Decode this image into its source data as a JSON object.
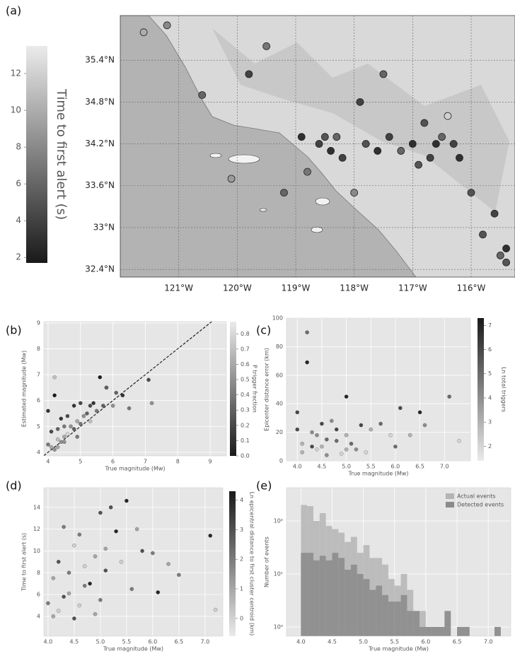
{
  "chart_data": [
    {
      "type": "map",
      "panel_label": "(a)",
      "x": [
        -121.6,
        -121.2,
        -120.6,
        -119.8,
        -119.2,
        -118.9,
        -118.6,
        -118.5,
        -118.4,
        -118.3,
        -118.2,
        -118.0,
        -117.8,
        -117.6,
        -117.4,
        -117.2,
        -117.0,
        -116.8,
        -116.7,
        -116.6,
        -116.5,
        -116.4,
        -116.3,
        -116.2,
        -116.0,
        -115.8,
        -115.6,
        -115.5,
        -115.4,
        -115.4,
        -119.5,
        -120.1,
        -117.9,
        -117.5,
        -116.9,
        -118.8
      ],
      "values": [
        35.8,
        35.9,
        34.9,
        35.2,
        33.5,
        34.3,
        34.2,
        34.3,
        34.1,
        34.3,
        34.0,
        33.5,
        34.2,
        34.1,
        34.3,
        34.1,
        34.2,
        34.5,
        34.0,
        34.2,
        34.3,
        34.6,
        34.2,
        34.0,
        33.5,
        32.9,
        33.2,
        32.6,
        32.5,
        32.7,
        35.6,
        33.7,
        34.8,
        35.2,
        33.9,
        33.8
      ],
      "color_values": [
        10,
        8,
        6,
        4,
        6,
        3,
        4,
        5,
        3,
        6,
        4,
        8,
        5,
        3,
        4,
        6,
        3,
        5,
        4,
        3,
        6,
        12,
        4,
        3,
        5,
        5,
        4,
        6,
        5,
        3,
        7,
        9,
        4,
        6,
        5,
        7
      ],
      "xlim": [
        -122.0,
        -115.25
      ],
      "ylim": [
        32.29,
        36.04
      ],
      "xticks": [
        {
          "value": -121,
          "label": "121°W"
        },
        {
          "value": -120,
          "label": "120°W"
        },
        {
          "value": -119,
          "label": "119°W"
        },
        {
          "value": -118,
          "label": "118°W"
        },
        {
          "value": -117,
          "label": "117°W"
        },
        {
          "value": -116,
          "label": "116°W"
        }
      ],
      "yticks": [
        {
          "value": 32.4,
          "label": "32.4°N"
        },
        {
          "value": 33,
          "label": "33°N"
        },
        {
          "value": 33.6,
          "label": "33.6°N"
        },
        {
          "value": 34.2,
          "label": "34.2°N"
        },
        {
          "value": 34.8,
          "label": "34.8°N"
        },
        {
          "value": 35.4,
          "label": "35.4°N"
        }
      ],
      "grid": true,
      "colorbar": {
        "label": "Time to first alert (s)",
        "lim": [
          1.7,
          13.5
        ],
        "ticks": [
          2,
          4,
          6,
          8,
          10,
          12
        ],
        "reverse": false
      }
    },
    {
      "type": "scatter",
      "panel_label": "(b)",
      "x_label": "True magnitude (Mw)",
      "y_label": "Estimated magnitude (Mw)",
      "x": [
        4.0,
        4.1,
        4.1,
        4.2,
        4.2,
        4.3,
        4.3,
        4.4,
        4.4,
        4.5,
        4.5,
        4.6,
        4.6,
        4.7,
        4.8,
        4.8,
        4.9,
        5.0,
        5.0,
        5.1,
        5.2,
        5.3,
        5.4,
        5.5,
        5.6,
        5.7,
        5.8,
        6.0,
        6.1,
        6.3,
        6.5,
        7.1,
        7.2,
        4.2,
        4.0,
        4.3,
        4.5,
        4.9,
        5.3,
        5.8
      ],
      "values": [
        4.3,
        4.2,
        4.8,
        4.1,
        6.2,
        4.5,
        4.9,
        4.4,
        5.3,
        4.6,
        5.0,
        4.7,
        5.4,
        5.0,
        4.9,
        5.8,
        5.2,
        5.1,
        5.9,
        5.4,
        5.5,
        5.2,
        5.9,
        5.6,
        6.9,
        5.8,
        6.5,
        5.8,
        6.3,
        6.2,
        5.7,
        6.8,
        5.9,
        6.9,
        5.6,
        4.2,
        4.4,
        4.6,
        5.8,
        6.5
      ],
      "color_values": [
        0.4,
        0.6,
        0.2,
        0.5,
        0.0,
        0.7,
        0.3,
        0.5,
        0.1,
        0.6,
        0.4,
        0.8,
        0.2,
        0.5,
        0.3,
        0.1,
        0.6,
        0.4,
        0.2,
        0.5,
        0.3,
        0.7,
        0.1,
        0.4,
        0.0,
        0.3,
        0.2,
        0.5,
        0.3,
        0.1,
        0.4,
        0.2,
        0.5,
        0.7,
        0.1,
        0.6,
        0.5,
        0.4,
        0.2,
        0.3
      ],
      "xlim": [
        3.87,
        9.5
      ],
      "ylim": [
        3.86,
        9.05
      ],
      "xticks": [
        4,
        5,
        6,
        7,
        8,
        9
      ],
      "yticks": [
        4,
        5,
        6,
        7,
        8,
        9
      ],
      "grid": true,
      "identity_line": true,
      "colorbar": {
        "label": "P trigger fraction",
        "lim": [
          0,
          0.88
        ],
        "ticks": [
          {
            "value": 0,
            "label": "0.0"
          },
          0.1,
          0.2,
          0.3,
          0.4,
          0.5,
          0.6,
          0.7,
          0.8
        ],
        "reverse": false
      }
    },
    {
      "type": "scatter",
      "panel_label": "(c)",
      "x_label": "True magnitude (Mw)",
      "y_label": "Epicenter distance error (km)",
      "x": [
        4.0,
        4.1,
        4.2,
        4.2,
        4.3,
        4.4,
        4.5,
        4.5,
        4.6,
        4.7,
        4.8,
        4.9,
        5.0,
        5.0,
        5.1,
        5.2,
        5.3,
        5.5,
        5.7,
        5.9,
        6.1,
        6.3,
        6.5,
        6.6,
        7.1,
        7.3,
        4.1,
        4.3,
        4.6,
        4.8,
        5.0,
        4.0,
        4.4,
        5.4,
        6.0
      ],
      "values": [
        34,
        12,
        69,
        90,
        20,
        8,
        26,
        10,
        15,
        28,
        22,
        5,
        45,
        18,
        12,
        8,
        25,
        22,
        26,
        18,
        37,
        18,
        34,
        25,
        45,
        14,
        6,
        10,
        4,
        14,
        8,
        22,
        18,
        6,
        10
      ],
      "color_values": [
        6,
        3,
        7,
        5,
        4,
        2,
        6,
        3,
        5,
        4,
        6,
        2,
        7,
        3,
        5,
        4,
        6,
        3,
        5,
        2,
        6,
        3,
        7,
        4,
        5,
        2,
        3,
        6,
        4,
        5,
        3,
        6,
        4,
        2,
        5
      ],
      "xlim": [
        3.78,
        7.53
      ],
      "ylim": [
        0,
        100
      ],
      "xticks": [
        {
          "value": 4,
          "label": "4.0"
        },
        4.5,
        {
          "value": 5,
          "label": "5.0"
        },
        5.5,
        {
          "value": 6,
          "label": "6.0"
        },
        6.5,
        {
          "value": 7,
          "label": "7.0"
        }
      ],
      "yticks": [
        0,
        20,
        40,
        60,
        80,
        100
      ],
      "grid": true,
      "colorbar": {
        "label": "Ln total triggers",
        "lim": [
          1.4,
          7.3
        ],
        "ticks": [
          2,
          3,
          4,
          5,
          6,
          7
        ],
        "reverse": true
      }
    },
    {
      "type": "scatter",
      "panel_label": "(d)",
      "x_label": "True magnitude (Mw)",
      "y_label": "Time to first alert (s)",
      "x": [
        4.0,
        4.1,
        4.2,
        4.2,
        4.3,
        4.4,
        4.5,
        4.6,
        4.7,
        4.8,
        4.9,
        5.0,
        5.0,
        5.1,
        5.2,
        5.3,
        5.4,
        5.5,
        5.6,
        5.7,
        5.8,
        6.0,
        6.1,
        6.3,
        6.5,
        7.1,
        7.2,
        4.1,
        4.3,
        4.5,
        4.7,
        4.9,
        5.1,
        4.4,
        4.6
      ],
      "values": [
        5.2,
        7.5,
        9.0,
        4.5,
        12.2,
        6.1,
        3.8,
        11.5,
        8.6,
        7.0,
        9.5,
        13.5,
        5.5,
        10.2,
        14.0,
        11.8,
        9.0,
        14.6,
        6.5,
        12.0,
        10.0,
        9.8,
        6.2,
        8.8,
        7.8,
        11.4,
        4.6,
        4.0,
        5.8,
        10.5,
        6.8,
        4.2,
        8.2,
        8.0,
        5.0
      ],
      "color_values": [
        2,
        1,
        3,
        0,
        2,
        1,
        3,
        2,
        0,
        4,
        1,
        3,
        2,
        1,
        3,
        4,
        0,
        4,
        2,
        1,
        3,
        2,
        4,
        1,
        2,
        4,
        0,
        1,
        3,
        0,
        2,
        1,
        3,
        2,
        0
      ],
      "xlim": [
        3.92,
        7.34
      ],
      "ylim": [
        2.18,
        15.8
      ],
      "xticks": [
        {
          "value": 4,
          "label": "4.0"
        },
        4.5,
        {
          "value": 5,
          "label": "5.0"
        },
        5.5,
        {
          "value": 6,
          "label": "6.0"
        },
        6.5,
        {
          "value": 7,
          "label": "7.0"
        }
      ],
      "yticks": [
        4,
        6,
        8,
        10,
        12,
        14
      ],
      "grid": true,
      "colorbar": {
        "label": "Ln epicentral distance to first cluster centroid (km)",
        "lim": [
          -0.6,
          4.3
        ],
        "ticks": [
          0,
          1,
          2,
          3,
          4
        ],
        "reverse": true
      }
    },
    {
      "type": "histogram",
      "panel_label": "(e)",
      "x_label": "True magnitude (Mw)",
      "y_label": "Number of events",
      "bins": [
        4.0,
        4.1,
        4.2,
        4.3,
        4.4,
        4.5,
        4.6,
        4.7,
        4.8,
        4.9,
        5.0,
        5.1,
        5.2,
        5.3,
        5.4,
        5.5,
        5.6,
        5.7,
        5.8,
        5.9,
        6.0,
        6.1,
        6.2,
        6.3,
        6.4,
        6.5,
        6.6,
        6.7,
        6.8,
        6.9,
        7.0,
        7.1,
        7.2
      ],
      "series": [
        {
          "name": "Actual events",
          "color": "#b4b4b4",
          "values": [
            200,
            190,
            100,
            140,
            80,
            70,
            60,
            40,
            50,
            25,
            35,
            20,
            20,
            15,
            8,
            6,
            10,
            5,
            2,
            2,
            1,
            1,
            1,
            2,
            0,
            1,
            1,
            0,
            0,
            0,
            0,
            1
          ]
        },
        {
          "name": "Detected events",
          "color": "#8a8a8a",
          "values": [
            25,
            25,
            18,
            22,
            18,
            25,
            20,
            12,
            15,
            10,
            8,
            5,
            6,
            4,
            3,
            3,
            4,
            2,
            2,
            1,
            1,
            1,
            1,
            2,
            0,
            1,
            1,
            0,
            0,
            0,
            0,
            1
          ]
        }
      ],
      "log_y": true,
      "xlim": [
        3.77,
        7.36
      ],
      "ylim": [
        0.67,
        423
      ],
      "xticks": [
        {
          "value": 4,
          "label": "4.0"
        },
        4.5,
        {
          "value": 5,
          "label": "5.0"
        },
        5.5,
        {
          "value": 6,
          "label": "6.0"
        },
        6.5,
        {
          "value": 7,
          "label": "7.0"
        }
      ],
      "yticks": [
        {
          "value": 1,
          "label": "10⁰"
        },
        {
          "value": 10,
          "label": "10¹"
        },
        {
          "value": 100,
          "label": "10²"
        }
      ],
      "grid": true,
      "legend": "upper right"
    }
  ]
}
